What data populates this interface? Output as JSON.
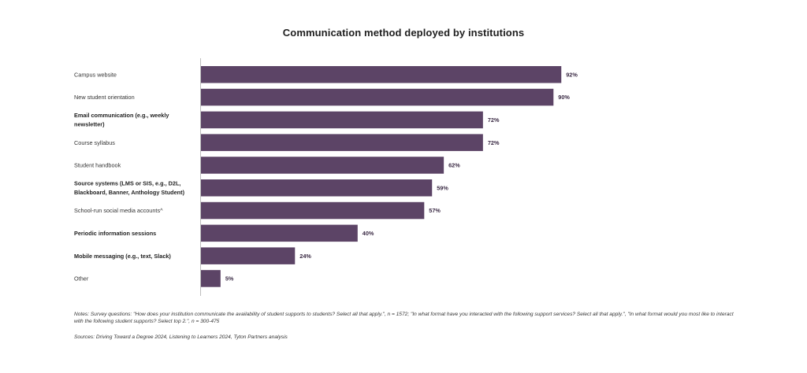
{
  "chart_data": {
    "type": "bar",
    "orientation": "horizontal",
    "title": "Communication method deployed by institutions",
    "categories": [
      [
        "Campus website"
      ],
      [
        "New student orientation"
      ],
      [
        "Email communication (e.g., weekly",
        "newsletter)"
      ],
      [
        "Course syllabus"
      ],
      [
        "Student handbook"
      ],
      [
        "Source systems (LMS or SIS, e.g., D2L,",
        "Blackboard, Banner, Anthology Student)"
      ],
      [
        "School-run social media accounts^"
      ],
      [
        "Periodic information sessions"
      ],
      [
        "Mobile messaging (e.g., text, Slack)"
      ],
      [
        "Other"
      ]
    ],
    "bold_categories": [
      false,
      false,
      true,
      false,
      false,
      true,
      false,
      true,
      true,
      false
    ],
    "values": [
      92,
      90,
      72,
      72,
      62,
      59,
      57,
      40,
      24,
      5
    ],
    "value_labels": [
      "92%",
      "90%",
      "72%",
      "72%",
      "62%",
      "59%",
      "57%",
      "40%",
      "24%",
      "5%"
    ],
    "xlim": [
      0,
      100
    ],
    "bar_color": "#5c4466",
    "grid": false,
    "legend": "none"
  },
  "notes": "Notes: Survey questions: \"How does your institution communicate the availability of student supports to students? Select all that apply.\", n = 1572; \"In what format have you interacted with the following support services? Select all that apply.\", \"In what format would you most like to interact with the following student supports? Select top 2.\", n = 300-475",
  "sources": "Sources: Driving Toward a Degree 2024, Listening to Learners 2024, Tyton Partners analysis"
}
